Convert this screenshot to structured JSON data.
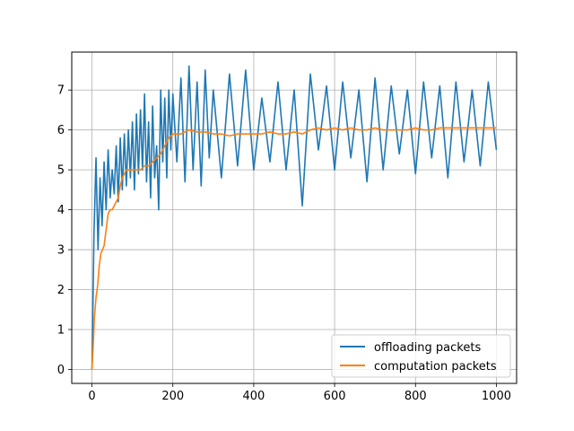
{
  "chart_data": {
    "type": "line",
    "title": "",
    "xlabel": "",
    "ylabel": "",
    "xlim": [
      -50,
      1050
    ],
    "ylim": [
      -0.35,
      7.95
    ],
    "xticks": [
      0,
      200,
      400,
      600,
      800,
      1000
    ],
    "yticks": [
      0,
      1,
      2,
      3,
      4,
      5,
      6,
      7
    ],
    "grid": true,
    "legend": {
      "placement": "lower-right"
    },
    "colors": {
      "offloading": "#1f77b4",
      "computation": "#ff7f0e"
    },
    "series": [
      {
        "name": "offloading packets",
        "color": "#1f77b4",
        "x": [
          0,
          5,
          10,
          15,
          20,
          25,
          30,
          35,
          40,
          45,
          50,
          55,
          60,
          65,
          70,
          75,
          80,
          85,
          90,
          95,
          100,
          105,
          110,
          115,
          120,
          125,
          130,
          135,
          140,
          145,
          150,
          155,
          160,
          165,
          170,
          175,
          180,
          185,
          190,
          195,
          200,
          210,
          220,
          230,
          240,
          250,
          260,
          270,
          280,
          290,
          300,
          320,
          340,
          360,
          380,
          400,
          420,
          440,
          460,
          480,
          500,
          520,
          540,
          560,
          580,
          600,
          620,
          640,
          660,
          680,
          700,
          720,
          740,
          760,
          780,
          800,
          820,
          840,
          860,
          880,
          900,
          920,
          940,
          960,
          980,
          1000
        ],
        "values": [
          0,
          3.4,
          5.3,
          3.0,
          4.8,
          3.6,
          5.2,
          4.0,
          5.5,
          4.3,
          5.0,
          4.4,
          5.6,
          4.2,
          5.8,
          4.5,
          5.9,
          4.6,
          6.0,
          4.8,
          6.2,
          4.5,
          6.4,
          4.9,
          6.5,
          5.0,
          6.9,
          4.7,
          6.2,
          4.3,
          6.6,
          4.8,
          5.6,
          4.0,
          7.0,
          5.2,
          6.8,
          4.8,
          7.0,
          5.5,
          6.9,
          5.2,
          7.3,
          4.7,
          7.6,
          5.0,
          7.2,
          4.6,
          7.5,
          5.3,
          7.0,
          4.8,
          7.4,
          5.1,
          7.5,
          5.0,
          6.8,
          5.2,
          7.2,
          5.0,
          7.0,
          4.1,
          7.4,
          5.5,
          7.1,
          5.0,
          7.2,
          5.3,
          7.0,
          4.7,
          7.3,
          5.0,
          7.1,
          5.4,
          7.0,
          4.9,
          7.2,
          5.3,
          7.1,
          4.8,
          7.2,
          5.2,
          7.0,
          5.1,
          7.2,
          5.5
        ]
      },
      {
        "name": "computation packets",
        "color": "#ff7f0e",
        "x": [
          0,
          3,
          6,
          10,
          14,
          18,
          22,
          26,
          30,
          35,
          40,
          45,
          50,
          55,
          60,
          65,
          70,
          75,
          80,
          85,
          90,
          100,
          110,
          120,
          130,
          140,
          150,
          160,
          170,
          180,
          190,
          200,
          220,
          240,
          260,
          280,
          300,
          320,
          340,
          360,
          380,
          400,
          420,
          440,
          460,
          480,
          500,
          520,
          540,
          560,
          580,
          600,
          620,
          640,
          660,
          680,
          700,
          720,
          740,
          760,
          780,
          800,
          820,
          840,
          860,
          880,
          900,
          920,
          940,
          960,
          980,
          1000
        ],
        "values": [
          0,
          0.6,
          1.3,
          1.8,
          2.1,
          2.6,
          2.9,
          3.0,
          3.1,
          3.5,
          3.9,
          4.0,
          4.0,
          4.1,
          4.2,
          4.3,
          4.6,
          4.8,
          4.9,
          5.0,
          5.0,
          5.0,
          5.0,
          5.0,
          5.1,
          5.1,
          5.2,
          5.3,
          5.4,
          5.6,
          5.8,
          5.9,
          5.9,
          6.0,
          5.95,
          5.95,
          5.9,
          5.9,
          5.85,
          5.9,
          5.9,
          5.9,
          5.9,
          5.95,
          5.9,
          5.9,
          5.95,
          5.9,
          6.0,
          6.05,
          6.0,
          6.05,
          6.0,
          6.05,
          6.0,
          6.0,
          6.05,
          6.0,
          6.0,
          6.0,
          6.0,
          6.05,
          6.0,
          6.0,
          6.05,
          6.05,
          6.05,
          6.05,
          6.05,
          6.05,
          6.05,
          6.05
        ]
      }
    ]
  }
}
